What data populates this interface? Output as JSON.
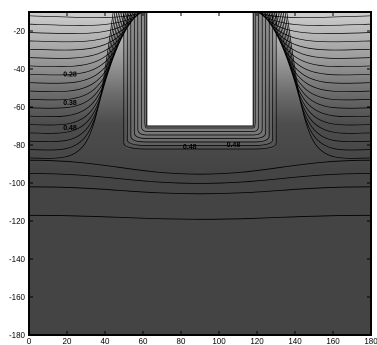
{
  "chart_data": {
    "type": "contour",
    "title": "",
    "xlabel": "",
    "ylabel": "",
    "xlim": [
      0,
      180
    ],
    "ylim": [
      -180,
      -10
    ],
    "x_ticks": [
      0,
      20,
      40,
      60,
      80,
      100,
      120,
      140,
      160,
      180
    ],
    "y_ticks": [
      -20,
      -40,
      -60,
      -80,
      -100,
      -120,
      -140,
      -160,
      -180
    ],
    "x_tick_labels": [
      "0",
      "20",
      "40",
      "60",
      "80",
      "100",
      "120",
      "140",
      "160",
      "180"
    ],
    "y_tick_labels": [
      "-20",
      "-40",
      "-60",
      "-80",
      "-100",
      "-120",
      "-140",
      "-160",
      "-180"
    ],
    "grid": false,
    "excluded_region": {
      "x": [
        62,
        118
      ],
      "y": [
        -70,
        -10
      ]
    },
    "contour_labels": [
      {
        "text": "0.28",
        "x": 18,
        "y": -44
      },
      {
        "text": "0.38",
        "x": 18,
        "y": -59
      },
      {
        "text": "0.48",
        "x": 18,
        "y": -72
      },
      {
        "text": "0.48",
        "x": 81,
        "y": -82
      },
      {
        "text": "0.48",
        "x": 104,
        "y": -81
      }
    ],
    "colors": {
      "background_dark": "#444444",
      "background_light": "#c8c8c8",
      "contour_line": "#000000",
      "excluded": "#ffffff"
    }
  }
}
